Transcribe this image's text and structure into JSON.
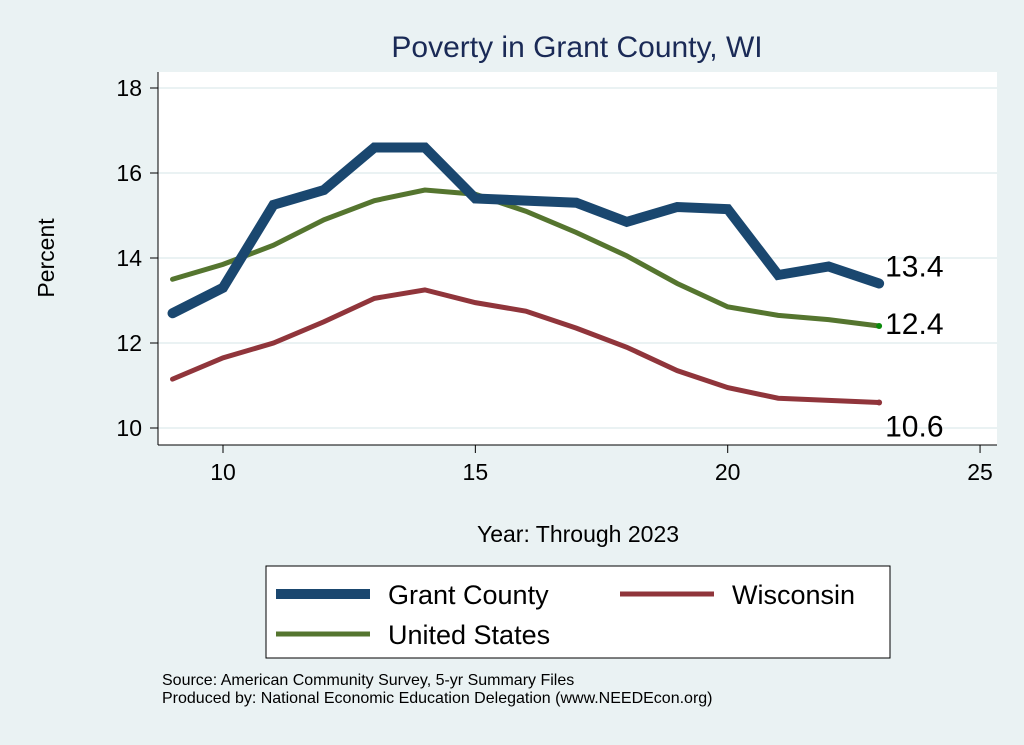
{
  "chart_data": {
    "type": "line",
    "title": "Poverty in Grant County, WI",
    "xlabel": "Year: Through 2023",
    "ylabel": "Percent",
    "xlim": [
      8.7,
      25.3
    ],
    "ylim": [
      9.6,
      18.4
    ],
    "xticks": [
      10,
      15,
      20,
      25
    ],
    "yticks": [
      10,
      12,
      14,
      16,
      18
    ],
    "grid": true,
    "legend_position": "bottom",
    "x": [
      9,
      10,
      11,
      12,
      13,
      14,
      15,
      16,
      17,
      18,
      19,
      20,
      21,
      22,
      23
    ],
    "series": [
      {
        "name": "Grant County",
        "color": "#1a476f",
        "values": [
          12.7,
          13.3,
          15.25,
          15.6,
          16.6,
          16.6,
          15.4,
          15.35,
          15.3,
          14.85,
          15.2,
          15.15,
          13.6,
          13.8,
          13.4
        ],
        "end_label": "13.4"
      },
      {
        "name": "Wisconsin",
        "color": "#90353b",
        "values": [
          11.15,
          11.65,
          12.0,
          12.5,
          13.05,
          13.25,
          12.95,
          12.75,
          12.35,
          11.9,
          11.35,
          10.95,
          10.7,
          10.65,
          10.6
        ],
        "end_label": "10.6"
      },
      {
        "name": "United States",
        "color": "#55752f",
        "values": [
          13.5,
          13.85,
          14.3,
          14.9,
          15.35,
          15.6,
          15.5,
          15.1,
          14.6,
          14.05,
          13.4,
          12.85,
          12.65,
          12.55,
          12.4
        ],
        "end_label": "12.4"
      }
    ]
  },
  "notes": {
    "source": "Source: American Community Survey, 5-yr Summary Files",
    "produced": "Produced by: National Economic Education Delegation (www.NEEDEcon.org)"
  }
}
